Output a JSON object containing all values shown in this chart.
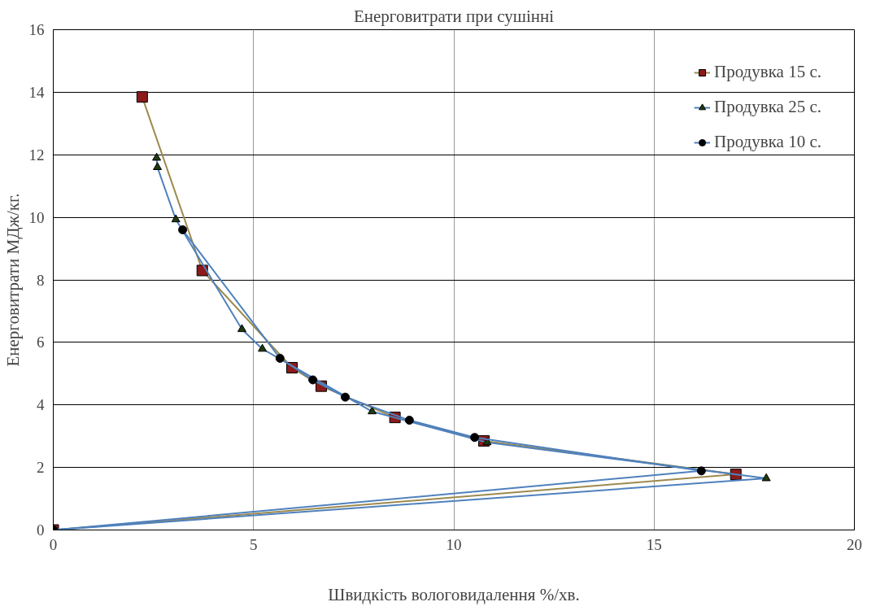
{
  "chart_data": {
    "type": "line",
    "title": "Енерговитрати при сушінні",
    "xlabel": "Швидкість вологовидалення %/хв.",
    "ylabel": "Енерговитрати МДж/кг.",
    "xlim": [
      0,
      20
    ],
    "xticks": [
      0,
      5,
      10,
      15,
      20
    ],
    "ylim": [
      0,
      16
    ],
    "yticks": [
      0,
      2,
      4,
      6,
      8,
      10,
      12,
      14,
      16
    ],
    "grid": true,
    "legend": "top right",
    "line_style": "solid",
    "series": [
      {
        "name": "Продувка 15 с.",
        "color": "#9c8a4e",
        "marker": "square",
        "x": [
          2.22,
          3.72,
          5.96,
          6.69,
          8.53,
          10.75,
          17.04,
          0
        ],
        "values": [
          13.85,
          8.3,
          5.19,
          4.6,
          3.6,
          2.85,
          1.78,
          0
        ]
      },
      {
        "name": "Продувка 25 с.",
        "color": "#4f81bd",
        "marker": "triangle",
        "x": [
          2.58,
          2.6,
          3.06,
          4.71,
          5.22,
          7.96,
          10.83,
          17.8,
          0
        ],
        "values": [
          11.9,
          11.6,
          9.93,
          6.42,
          5.79,
          3.79,
          2.8,
          1.65,
          0
        ]
      },
      {
        "name": "Продувка 10 с.",
        "color": "#4f81bd",
        "marker": "circle",
        "x": [
          3.23,
          5.66,
          6.48,
          7.29,
          8.89,
          10.52,
          16.18,
          0
        ],
        "values": [
          9.6,
          5.49,
          4.8,
          4.25,
          3.51,
          2.96,
          1.89,
          0
        ]
      }
    ]
  }
}
